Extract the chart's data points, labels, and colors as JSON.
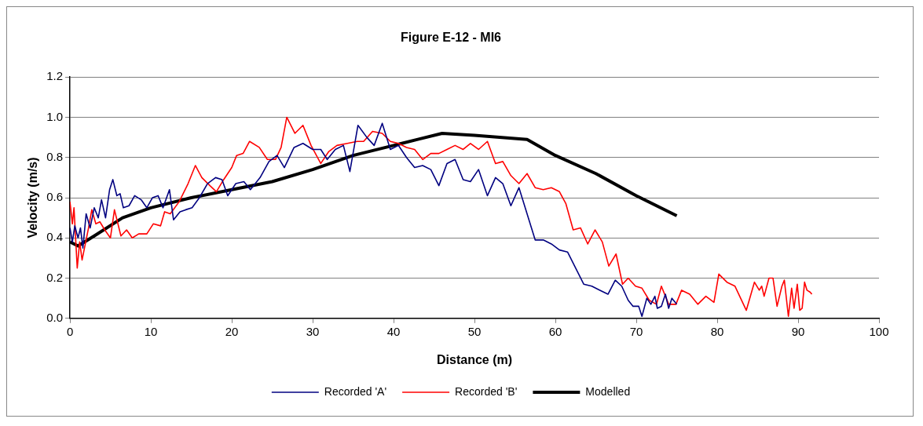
{
  "chart_data": {
    "type": "line",
    "title": "Figure E-12 - MI6",
    "xlabel": "Distance (m)",
    "ylabel": "Velocity (m/s)",
    "xlim": [
      0,
      100
    ],
    "xticks": [
      0,
      10,
      20,
      30,
      40,
      50,
      60,
      70,
      80,
      90,
      100
    ],
    "ylim": [
      0,
      1.2
    ],
    "yticks": [
      {
        "value": 0,
        "label": "0.0"
      },
      {
        "value": 0.2,
        "label": "0.2"
      },
      {
        "value": 0.4,
        "label": "0.4"
      },
      {
        "value": 0.6,
        "label": "0.6"
      },
      {
        "value": 0.8,
        "label": "0.8"
      },
      {
        "value": 1,
        "label": "1.0"
      },
      {
        "value": 1.2,
        "label": "1.2"
      }
    ],
    "grid": "y",
    "legend": "bottom",
    "marker": "none",
    "line_style": "solid",
    "series": [
      {
        "name": "Recorded 'A'",
        "color": "#000080",
        "x": [
          0,
          0.3,
          0.6,
          1,
          1.3,
          1.6,
          2,
          2.5,
          3,
          3.5,
          3.9,
          4.4,
          4.9,
          5.3,
          5.8,
          6.2,
          6.6,
          7.3,
          8,
          8.8,
          9.5,
          10.2,
          10.9,
          11.5,
          12.3,
          12.8,
          13.6,
          14.3,
          15.1,
          16,
          17,
          18,
          18.8,
          19.5,
          20.5,
          21.5,
          22.3,
          23.5,
          24.6,
          25.6,
          26.5,
          27.7,
          28.8,
          30,
          31,
          31.8,
          32.8,
          33.8,
          34.6,
          35.6,
          36.7,
          37.6,
          38.6,
          39.6,
          40.6,
          41.6,
          42.6,
          43.6,
          44.6,
          45.6,
          46.6,
          47.6,
          48.6,
          49.5,
          50.5,
          51.6,
          52.6,
          53.5,
          54.5,
          55.5,
          56.5,
          57.5,
          58.5,
          59.5,
          60.5,
          61.5,
          62.5,
          63.5,
          64.5,
          65.5,
          66.5,
          67.4,
          68.2,
          69,
          69.6,
          70.3,
          70.7,
          71.3,
          71.8,
          72.3,
          72.6,
          73.1,
          73.6,
          74,
          74.4,
          75
        ],
        "values": [
          0.45,
          0.38,
          0.46,
          0.4,
          0.45,
          0.35,
          0.52,
          0.45,
          0.55,
          0.5,
          0.59,
          0.5,
          0.64,
          0.69,
          0.61,
          0.62,
          0.55,
          0.56,
          0.61,
          0.59,
          0.55,
          0.6,
          0.61,
          0.55,
          0.64,
          0.49,
          0.53,
          0.54,
          0.55,
          0.6,
          0.67,
          0.7,
          0.69,
          0.61,
          0.67,
          0.68,
          0.64,
          0.7,
          0.78,
          0.81,
          0.75,
          0.85,
          0.87,
          0.84,
          0.84,
          0.79,
          0.84,
          0.86,
          0.73,
          0.96,
          0.9,
          0.86,
          0.97,
          0.84,
          0.86,
          0.8,
          0.75,
          0.76,
          0.74,
          0.66,
          0.77,
          0.79,
          0.69,
          0.68,
          0.74,
          0.61,
          0.7,
          0.67,
          0.56,
          0.65,
          0.52,
          0.39,
          0.39,
          0.37,
          0.34,
          0.33,
          0.25,
          0.17,
          0.16,
          0.14,
          0.12,
          0.19,
          0.16,
          0.09,
          0.06,
          0.06,
          0.01,
          0.1,
          0.07,
          0.11,
          0.05,
          0.06,
          0.12,
          0.05,
          0.1,
          0.07
        ]
      },
      {
        "name": "Recorded 'B'",
        "color": "#ff0000",
        "x": [
          0,
          0.3,
          0.5,
          0.9,
          1.2,
          1.5,
          1.9,
          2.3,
          2.7,
          3.2,
          3.7,
          4.3,
          5,
          5.5,
          6.3,
          7,
          7.7,
          8.5,
          9.5,
          10.3,
          11.2,
          11.7,
          12.4,
          13.5,
          14.6,
          15.5,
          16.3,
          17.3,
          18.1,
          19,
          20,
          20.6,
          21.4,
          22.2,
          23.4,
          24.4,
          25.4,
          26.1,
          26.8,
          27.8,
          28.8,
          29.8,
          31,
          32,
          33,
          34.3,
          35.5,
          36.3,
          37.4,
          38.6,
          39.6,
          40.6,
          41.6,
          42.6,
          43.6,
          44.6,
          45.6,
          46.6,
          47.6,
          48.6,
          49.5,
          50.5,
          51.6,
          52.6,
          53.5,
          54.5,
          55.5,
          56.5,
          57.5,
          58.5,
          59.5,
          60.5,
          61.3,
          62.2,
          63.1,
          64,
          64.9,
          65.8,
          66.6,
          67.5,
          68.3,
          69,
          69.9,
          70.7,
          71.6,
          72.5,
          73.1,
          74,
          74.9,
          75.6,
          76.6,
          77.6,
          78.6,
          79.6,
          80.2,
          81.2,
          82.2,
          83.6,
          84.6,
          85.2,
          85.5,
          85.8,
          86.4,
          86.9,
          87.4,
          88,
          88.3,
          88.8,
          89.2,
          89.5,
          89.9,
          90.2,
          90.5,
          90.8,
          91.1,
          91.5,
          91.7
        ],
        "values": [
          0.58,
          0.47,
          0.55,
          0.25,
          0.38,
          0.29,
          0.37,
          0.45,
          0.54,
          0.47,
          0.48,
          0.44,
          0.4,
          0.54,
          0.41,
          0.44,
          0.4,
          0.42,
          0.42,
          0.47,
          0.46,
          0.53,
          0.52,
          0.58,
          0.67,
          0.76,
          0.7,
          0.66,
          0.63,
          0.69,
          0.75,
          0.81,
          0.82,
          0.88,
          0.85,
          0.79,
          0.79,
          0.85,
          1,
          0.92,
          0.96,
          0.86,
          0.77,
          0.83,
          0.86,
          0.87,
          0.88,
          0.88,
          0.93,
          0.92,
          0.88,
          0.87,
          0.85,
          0.84,
          0.79,
          0.82,
          0.82,
          0.84,
          0.86,
          0.84,
          0.87,
          0.84,
          0.88,
          0.77,
          0.78,
          0.71,
          0.67,
          0.72,
          0.65,
          0.64,
          0.65,
          0.63,
          0.57,
          0.44,
          0.45,
          0.37,
          0.44,
          0.38,
          0.26,
          0.32,
          0.17,
          0.2,
          0.16,
          0.15,
          0.09,
          0.07,
          0.16,
          0.07,
          0.07,
          0.14,
          0.12,
          0.07,
          0.11,
          0.08,
          0.22,
          0.18,
          0.16,
          0.04,
          0.18,
          0.14,
          0.16,
          0.11,
          0.2,
          0.2,
          0.06,
          0.16,
          0.19,
          0.01,
          0.15,
          0.05,
          0.17,
          0.04,
          0.05,
          0.18,
          0.14,
          0.13,
          0.12
        ]
      },
      {
        "name": "Modelled",
        "color": "#000000",
        "x": [
          0,
          1,
          3,
          6.5,
          10,
          15,
          20,
          25,
          30,
          35,
          40,
          43,
          46,
          50,
          56.5,
          60,
          65,
          70,
          75
        ],
        "values": [
          0.38,
          0.36,
          0.41,
          0.5,
          0.55,
          0.6,
          0.64,
          0.68,
          0.74,
          0.81,
          0.86,
          0.89,
          0.92,
          0.91,
          0.89,
          0.81,
          0.72,
          0.61,
          0.51
        ]
      }
    ]
  }
}
